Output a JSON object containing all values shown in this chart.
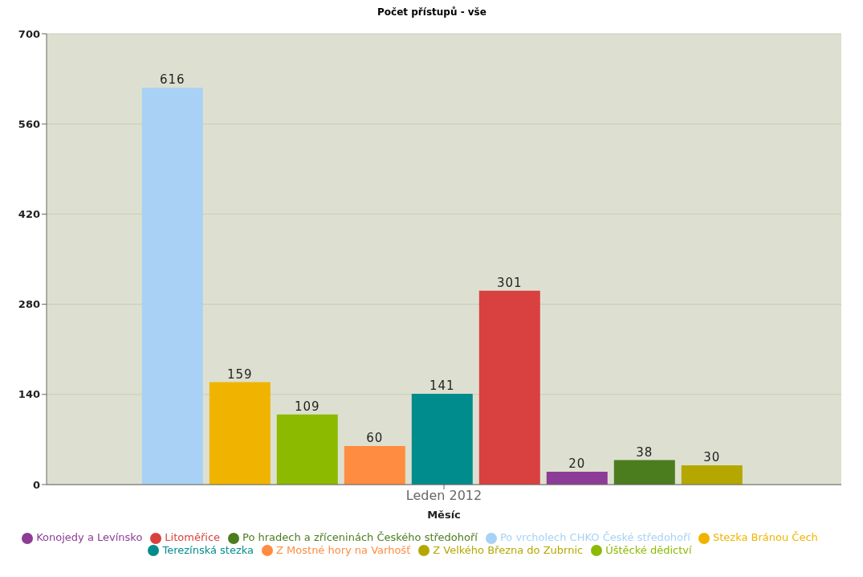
{
  "chart_data": {
    "type": "bar",
    "title": "Počet přístupů - vše",
    "xlabel": "Měsíc",
    "categories": [
      "Leden 2012"
    ],
    "series": [
      {
        "name": "Po vrcholech CHKO České středohoří",
        "color": "#a8d1f5",
        "values": [
          616
        ]
      },
      {
        "name": "Stezka Bránou Čech",
        "color": "#f0b400",
        "values": [
          159
        ]
      },
      {
        "name": "Úštěcké dědictví",
        "color": "#8cba00",
        "values": [
          109
        ]
      },
      {
        "name": "Z Mostné hory na Varhošť",
        "color": "#ff8c40",
        "values": [
          60
        ]
      },
      {
        "name": "Terezínská stezka",
        "color": "#008c8c",
        "values": [
          141
        ]
      },
      {
        "name": "Litoměřice",
        "color": "#d94040",
        "values": [
          301
        ]
      },
      {
        "name": "Konojedy a Levínsko",
        "color": "#8c3c96",
        "values": [
          20
        ]
      },
      {
        "name": "Po hradech a zříceninách Českého středohoří",
        "color": "#4b7d1e",
        "values": [
          38
        ]
      },
      {
        "name": "Z Velkého Března do Zubrnic",
        "color": "#b4a800",
        "values": [
          30
        ]
      }
    ],
    "ylim": [
      0,
      700
    ],
    "yticks": [
      0,
      140,
      280,
      420,
      560,
      700
    ],
    "grid": "y",
    "legend": "bottom",
    "data_labels": true
  }
}
